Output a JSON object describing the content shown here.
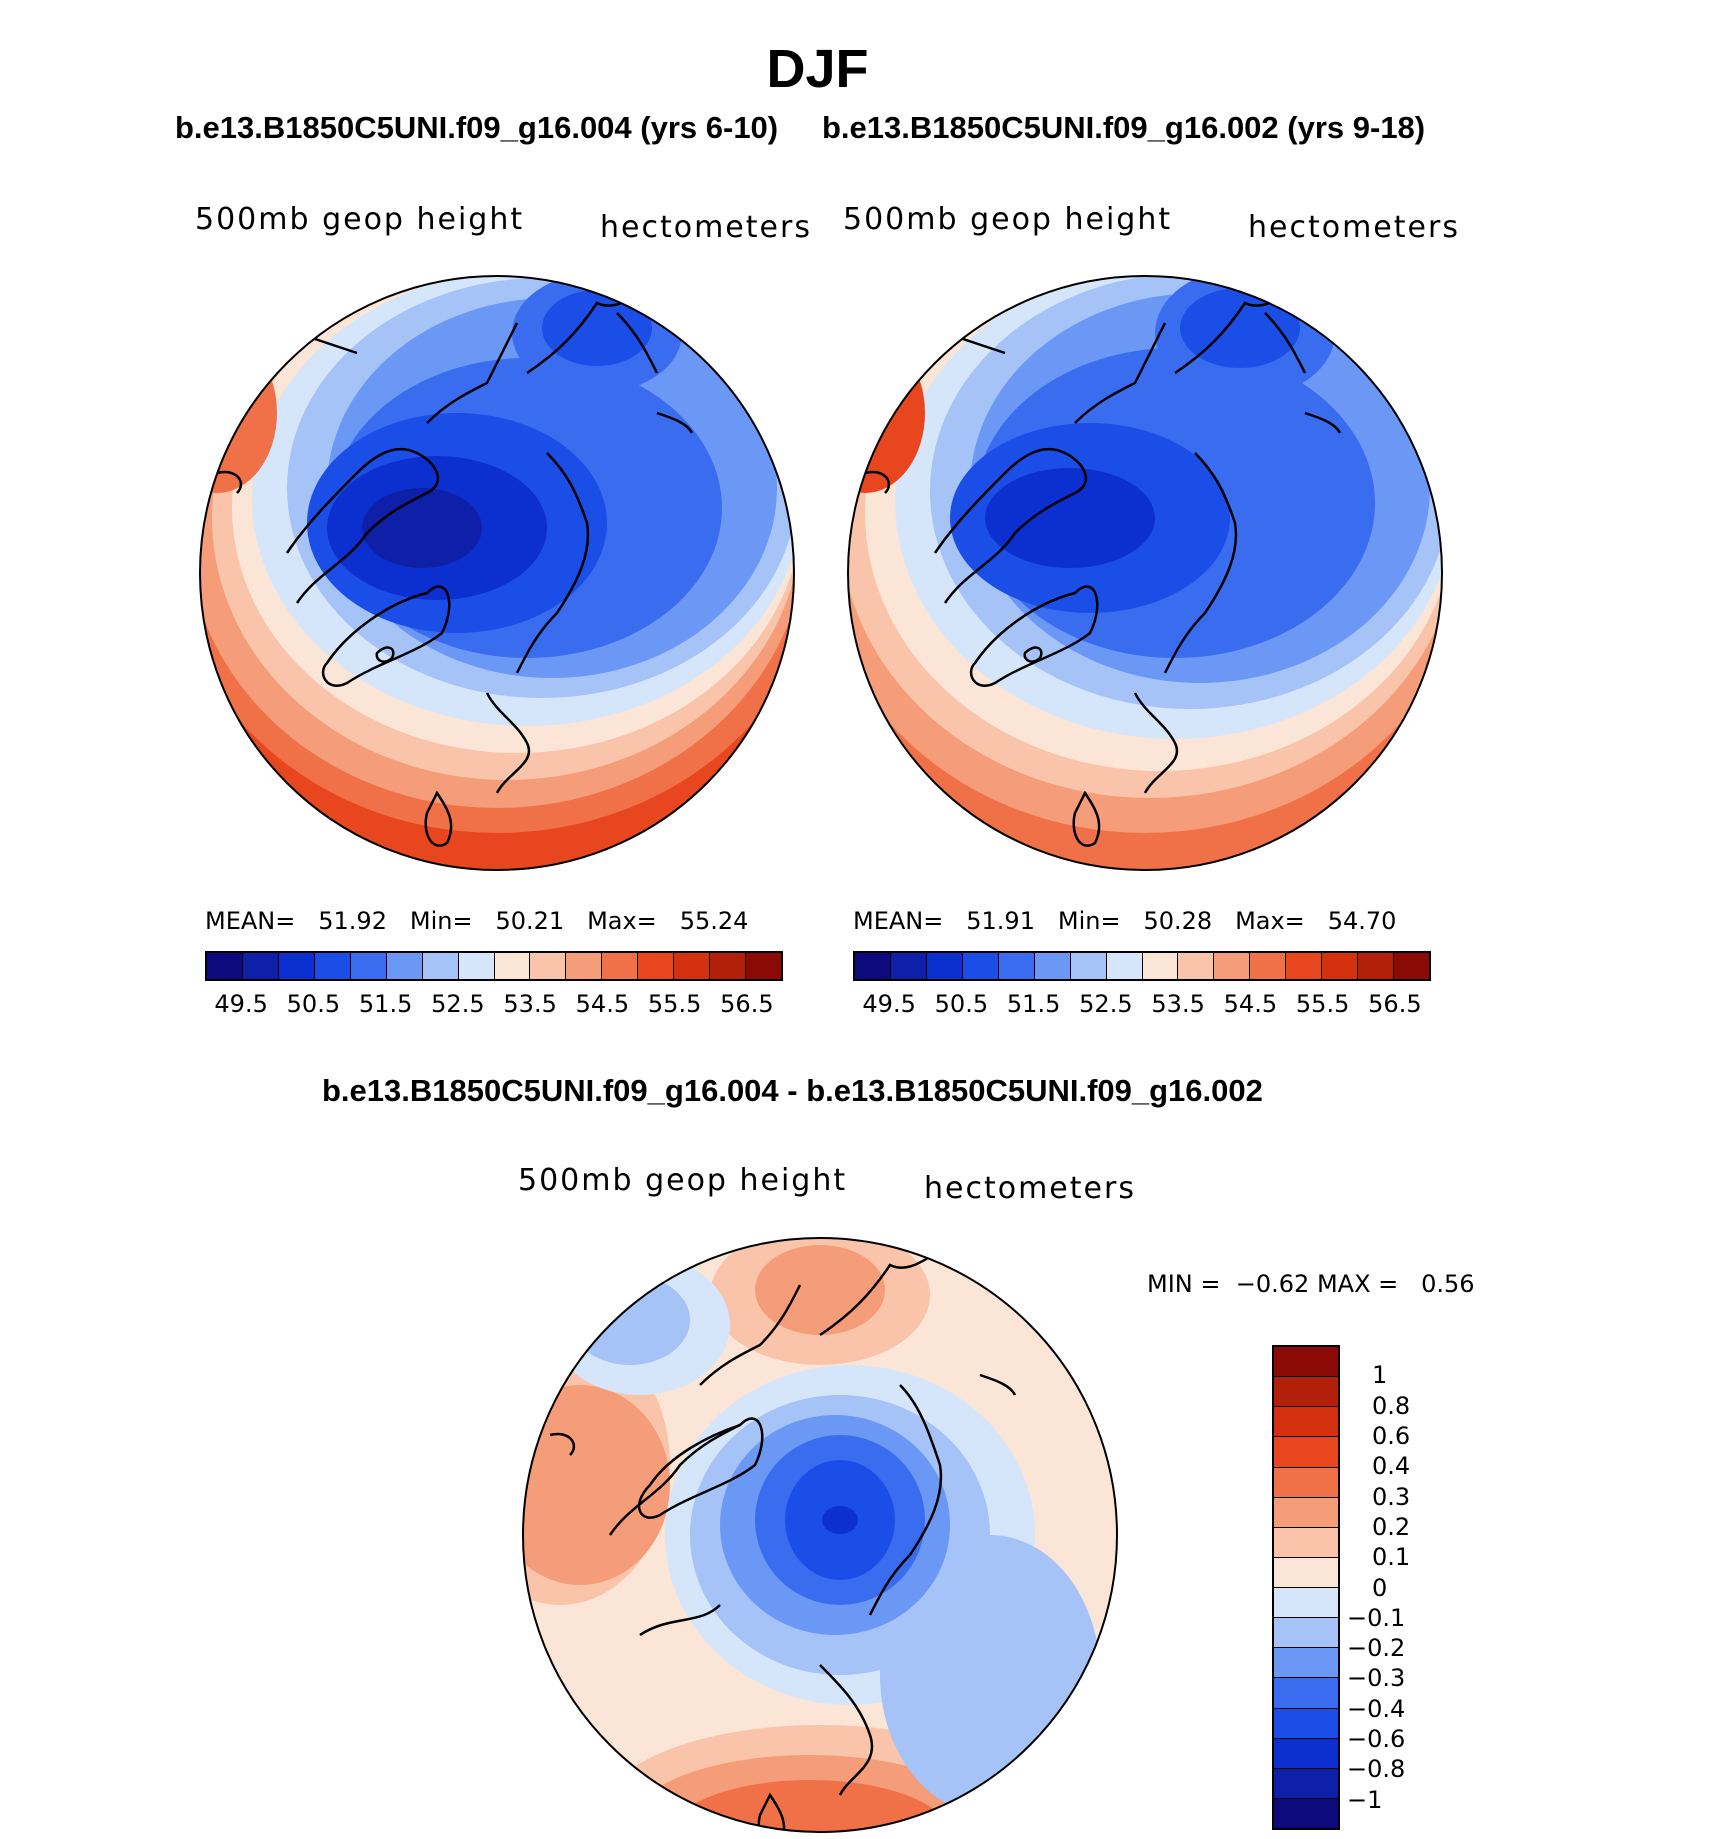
{
  "title": "DJF",
  "panel_left": {
    "subtitle": "b.e13.B1850C5UNI.f09_g16.004 (yrs 6-10)",
    "left_label": "500mb geop height",
    "right_label": "hectometers",
    "mean_label": "MEAN=",
    "mean": "51.92",
    "min_label": "Min=",
    "min": "50.21",
    "max_label": "Max=",
    "max": "55.24"
  },
  "panel_right": {
    "subtitle": "b.e13.B1850C5UNI.f09_g16.002 (yrs 9-18)",
    "left_label": "500mb geop height",
    "right_label": "hectometers",
    "mean_label": "MEAN=",
    "mean": "51.91",
    "min_label": "Min=",
    "min": "50.28",
    "max_label": "Max=",
    "max": "54.70"
  },
  "panel_diff": {
    "subtitle": "b.e13.B1850C5UNI.f09_g16.004 - b.e13.B1850C5UNI.f09_g16.002",
    "left_label": "500mb geop height",
    "right_label": "hectometers",
    "min_label": "MIN =",
    "min": "−0.62",
    "max_label": "MAX =",
    "max": "0.56"
  },
  "colorbar_horizontal": {
    "tick_labels": [
      "49.5",
      "50.5",
      "51.5",
      "52.5",
      "53.5",
      "54.5",
      "55.5",
      "56.5"
    ],
    "colors": [
      "#0d0a7e",
      "#0e1fa8",
      "#0c30d0",
      "#1a4ee6",
      "#3a6cf0",
      "#6c98f5",
      "#a6c3f7",
      "#d6e6fa",
      "#fbe5d6",
      "#f9c4a9",
      "#f59c78",
      "#f07147",
      "#e8461f",
      "#d3310f",
      "#b32009",
      "#8c0a05"
    ]
  },
  "colorbar_vertical": {
    "tick_labels": [
      "1",
      "0.8",
      "0.6",
      "0.4",
      "0.3",
      "0.2",
      "0.1",
      "0",
      "−0.1",
      "−0.2",
      "−0.3",
      "−0.4",
      "−0.6",
      "−0.8",
      "−1"
    ],
    "colors": [
      "#8c0a05",
      "#b32009",
      "#d3310f",
      "#e8461f",
      "#f07147",
      "#f59c78",
      "#f9c4a9",
      "#fbe5d6",
      "#d6e6fa",
      "#a6c3f7",
      "#6c98f5",
      "#3a6cf0",
      "#1a4ee6",
      "#0c30d0",
      "#0e1fa8",
      "#0d0a7e"
    ]
  }
}
